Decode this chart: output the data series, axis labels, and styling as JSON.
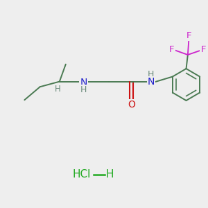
{
  "background_color": "#eeeeee",
  "bond_color": "#4a7a52",
  "N_color": "#2222cc",
  "O_color": "#cc1111",
  "F_color": "#cc22cc",
  "H_color": "#6a8a7a",
  "HCl_color": "#22aa22",
  "figsize": [
    3.0,
    3.0
  ],
  "dpi": 100,
  "xlim": [
    0,
    10
  ],
  "ylim": [
    0,
    10
  ]
}
